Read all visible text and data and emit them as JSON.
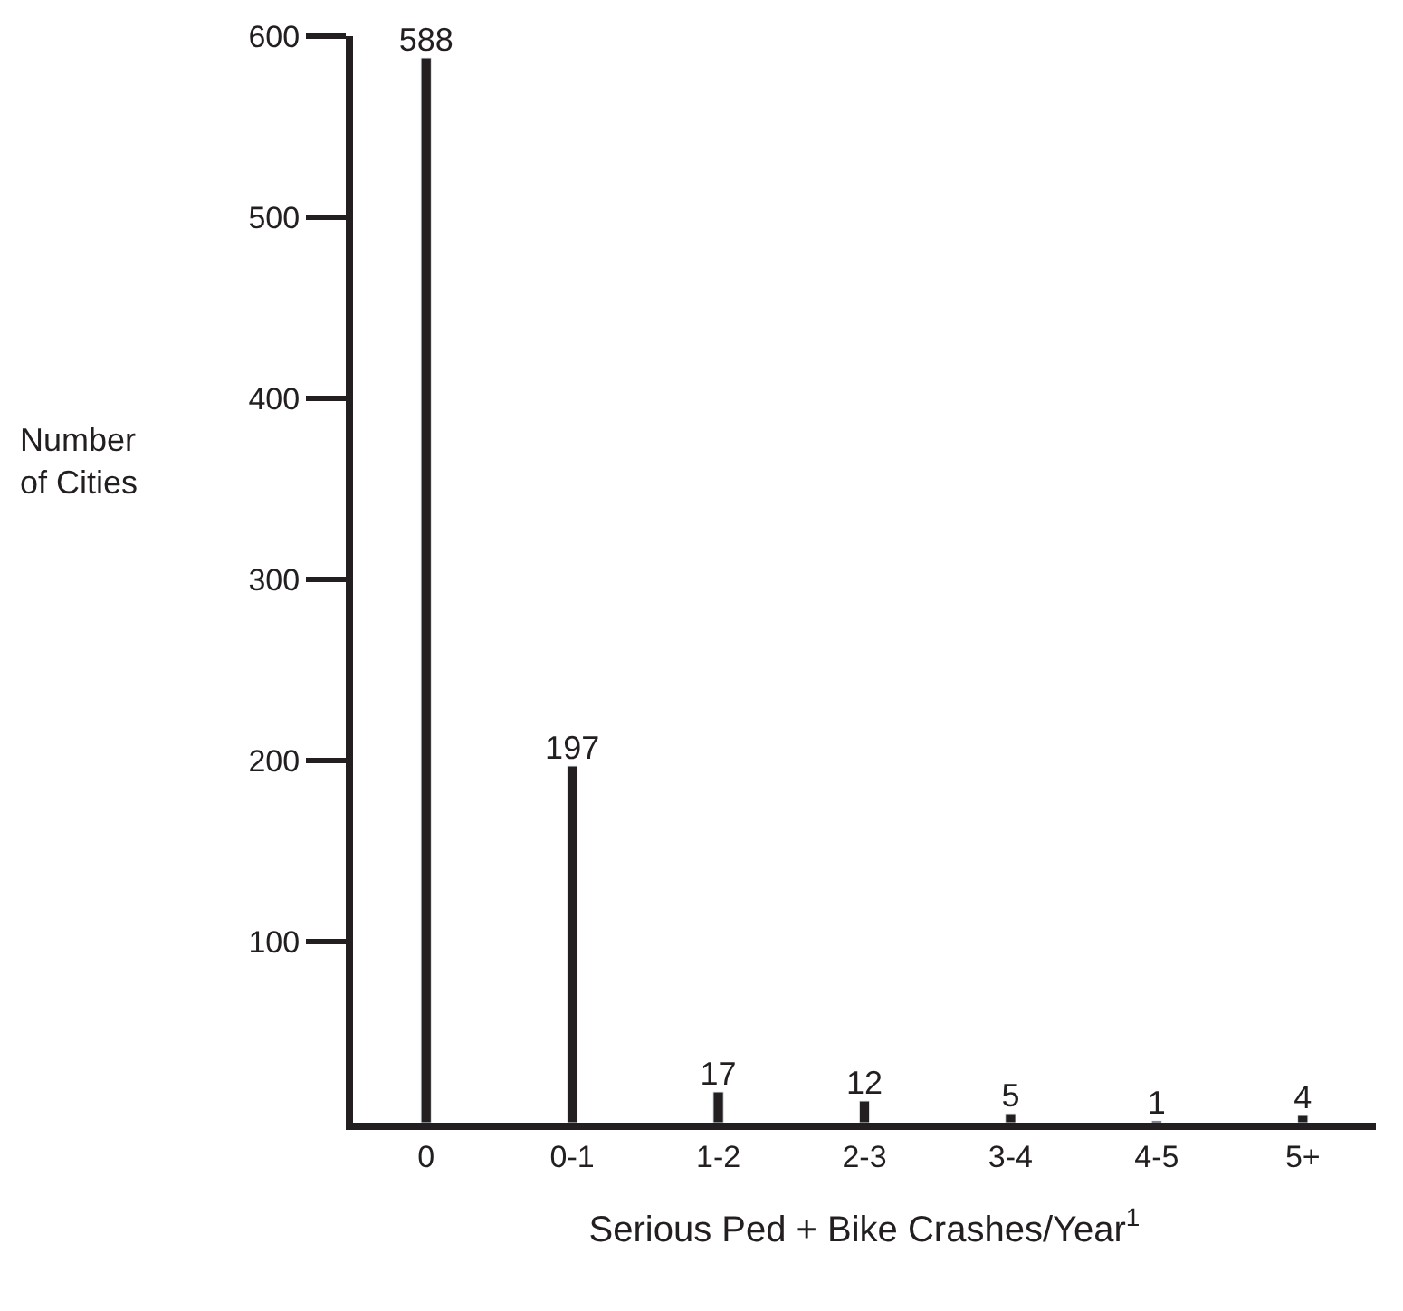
{
  "chart_data": {
    "type": "bar",
    "xlabel": "Serious Ped + Bike Crashes/Year$^{1}$",
    "ylabel": "Number\nof Cities",
    "categories": [
      "0",
      "0-1",
      "1-2",
      "2-3",
      "3-4",
      "4-5",
      "5+"
    ],
    "values": [
      588,
      197,
      17,
      12,
      5,
      1,
      4
    ],
    "color": "#231f20",
    "ylim": [
      0,
      600
    ],
    "yticks": [
      100,
      200,
      300,
      400,
      500,
      600
    ],
    "legend": false,
    "data_labels": true
  }
}
